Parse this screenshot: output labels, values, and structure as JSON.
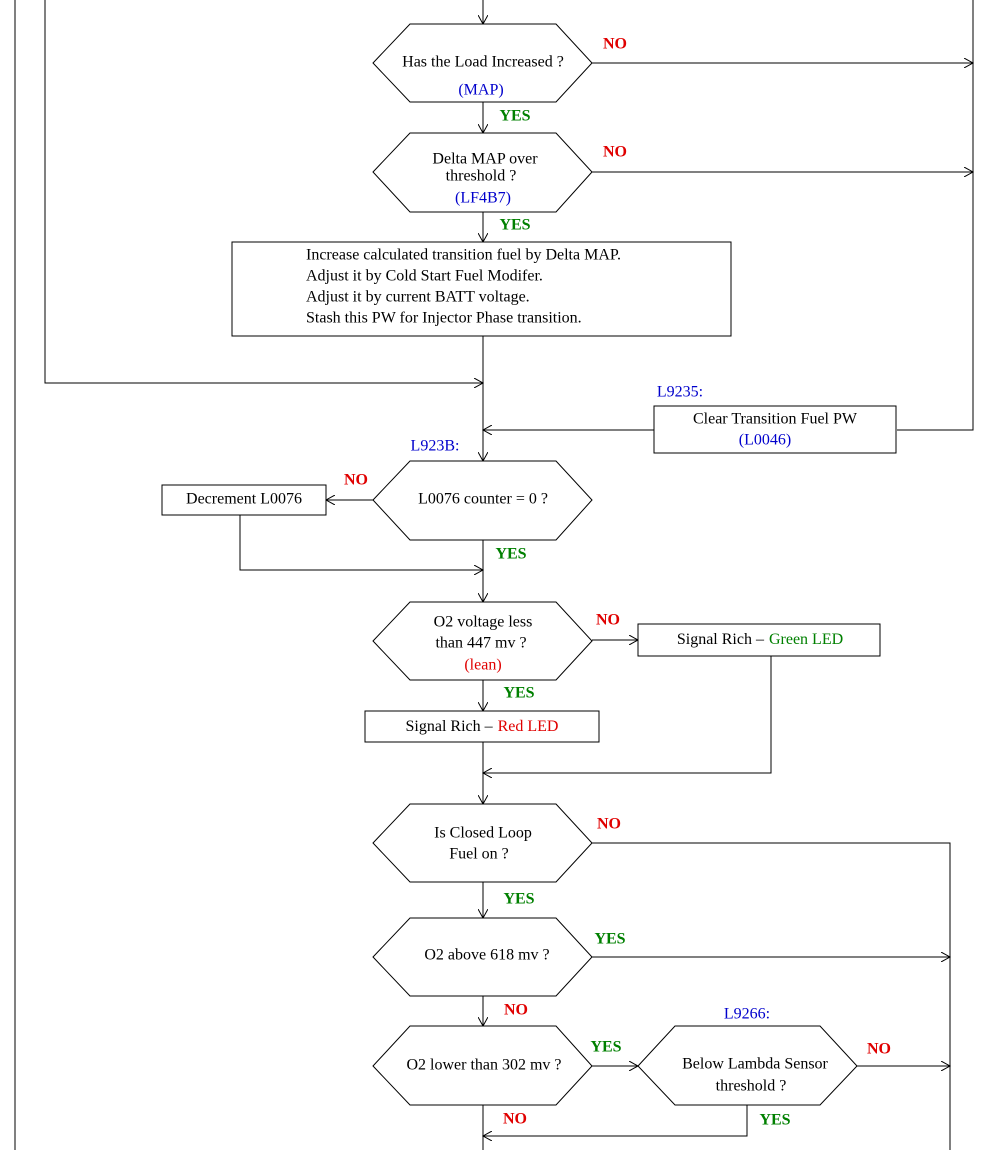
{
  "decisions": [
    {
      "text": [
        "Has the Load Increased ?"
      ],
      "ref": "(MAP)"
    },
    {
      "text": [
        "Delta MAP over",
        "threshold ?"
      ],
      "ref": "(LF4B7)"
    },
    {
      "label": "L923B:",
      "text": [
        "L0076 counter = 0 ?"
      ]
    },
    {
      "text": [
        "O2 voltage less",
        "than 447 mv ?"
      ],
      "note": "(lean)"
    },
    {
      "text": [
        "Is Closed Loop",
        "Fuel on ?"
      ]
    },
    {
      "text": [
        "O2 above 618 mv ?"
      ]
    },
    {
      "text": [
        "O2 lower than 302 mv ?"
      ]
    },
    {
      "label": "L9266:",
      "text": [
        "Below Lambda Sensor",
        "threshold ?"
      ]
    }
  ],
  "processes": [
    {
      "text": [
        "Increase calculated transition fuel by Delta MAP.",
        "Adjust it by Cold Start Fuel Modifer.",
        "Adjust it by current BATT voltage.",
        "Stash this PW for Injector Phase transition."
      ]
    },
    {
      "label": "L9235:",
      "text": [
        "Clear Transition Fuel PW"
      ],
      "ref": "(L0046)"
    },
    {
      "text": [
        "Decrement L0076"
      ]
    },
    {
      "prefix": "Signal Rich –",
      "highlight": "Green LED"
    },
    {
      "prefix": "Signal Rich –",
      "highlight": "Red LED"
    }
  ],
  "edge_labels": [
    "NO",
    "YES",
    "NO",
    "YES",
    "NO",
    "YES",
    "NO",
    "YES",
    "NO",
    "YES",
    "YES",
    "NO",
    "YES",
    "NO",
    "YES",
    "NO"
  ]
}
